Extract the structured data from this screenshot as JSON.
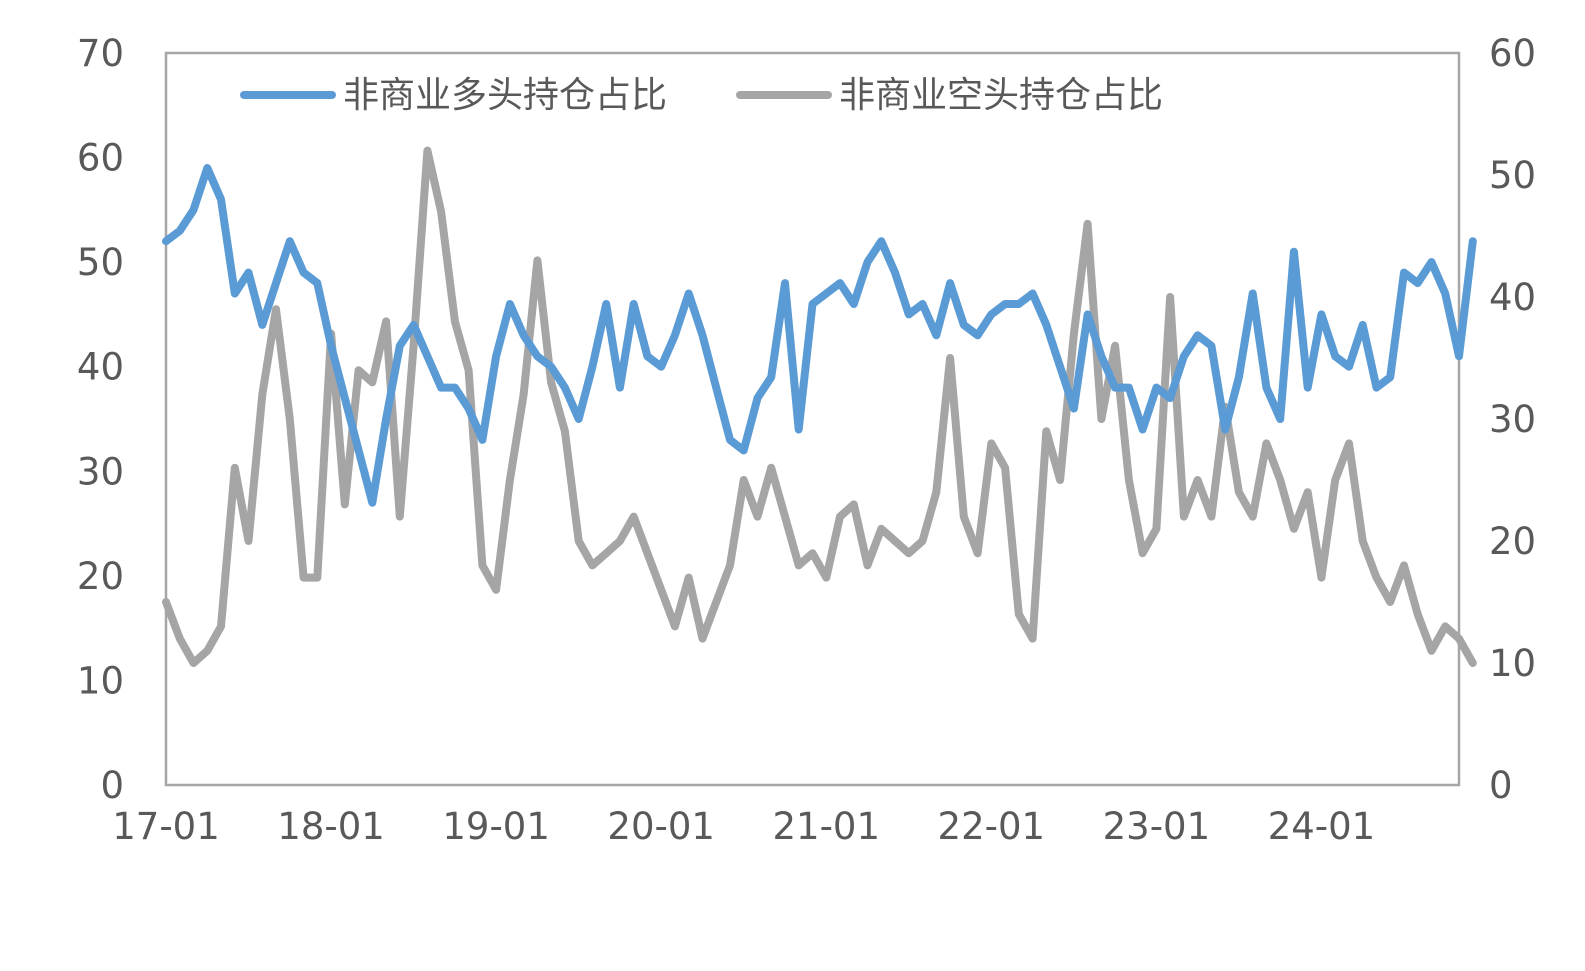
{
  "chart_data": {
    "type": "line",
    "title": "",
    "xlabel": "",
    "ylabel": "",
    "x_tick_labels": [
      "17-01",
      "18-01",
      "19-01",
      "20-01",
      "21-01",
      "22-01",
      "23-01",
      "24-01"
    ],
    "x_range": [
      "2017-01",
      "2024-11"
    ],
    "y_left": {
      "ylim": [
        0,
        70
      ],
      "ticks": [
        0,
        10,
        20,
        30,
        40,
        50,
        60,
        70
      ]
    },
    "y_right": {
      "ylim": [
        0,
        60
      ],
      "ticks": [
        0,
        10,
        20,
        30,
        40,
        50,
        60
      ]
    },
    "grid": false,
    "legend_position": "top",
    "series": [
      {
        "name": "非商业多头持仓占比",
        "axis": "left",
        "color": "#5b9bd5",
        "points": [
          [
            "2017-01",
            52
          ],
          [
            "2017-02",
            53
          ],
          [
            "2017-03",
            55
          ],
          [
            "2017-04",
            59
          ],
          [
            "2017-05",
            56
          ],
          [
            "2017-06",
            47
          ],
          [
            "2017-07",
            49
          ],
          [
            "2017-08",
            44
          ],
          [
            "2017-09",
            48
          ],
          [
            "2017-10",
            52
          ],
          [
            "2017-11",
            49
          ],
          [
            "2017-12",
            48
          ],
          [
            "2018-01",
            42
          ],
          [
            "2018-02",
            37
          ],
          [
            "2018-03",
            32
          ],
          [
            "2018-04",
            27
          ],
          [
            "2018-05",
            35
          ],
          [
            "2018-06",
            42
          ],
          [
            "2018-07",
            44
          ],
          [
            "2018-08",
            41
          ],
          [
            "2018-09",
            38
          ],
          [
            "2018-10",
            38
          ],
          [
            "2018-11",
            36
          ],
          [
            "2018-12",
            33
          ],
          [
            "2019-01",
            41
          ],
          [
            "2019-02",
            46
          ],
          [
            "2019-03",
            43
          ],
          [
            "2019-04",
            41
          ],
          [
            "2019-05",
            40
          ],
          [
            "2019-06",
            38
          ],
          [
            "2019-07",
            35
          ],
          [
            "2019-08",
            40
          ],
          [
            "2019-09",
            46
          ],
          [
            "2019-10",
            38
          ],
          [
            "2019-11",
            46
          ],
          [
            "2019-12",
            41
          ],
          [
            "2020-01",
            40
          ],
          [
            "2020-02",
            43
          ],
          [
            "2020-03",
            47
          ],
          [
            "2020-04",
            43
          ],
          [
            "2020-05",
            38
          ],
          [
            "2020-06",
            33
          ],
          [
            "2020-07",
            32
          ],
          [
            "2020-08",
            37
          ],
          [
            "2020-09",
            39
          ],
          [
            "2020-10",
            48
          ],
          [
            "2020-11",
            34
          ],
          [
            "2020-12",
            46
          ],
          [
            "2021-01",
            47
          ],
          [
            "2021-02",
            48
          ],
          [
            "2021-03",
            46
          ],
          [
            "2021-04",
            50
          ],
          [
            "2021-05",
            52
          ],
          [
            "2021-06",
            49
          ],
          [
            "2021-07",
            45
          ],
          [
            "2021-08",
            46
          ],
          [
            "2021-09",
            43
          ],
          [
            "2021-10",
            48
          ],
          [
            "2021-11",
            44
          ],
          [
            "2021-12",
            43
          ],
          [
            "2022-01",
            45
          ],
          [
            "2022-02",
            46
          ],
          [
            "2022-03",
            46
          ],
          [
            "2022-04",
            47
          ],
          [
            "2022-05",
            44
          ],
          [
            "2022-06",
            40
          ],
          [
            "2022-07",
            36
          ],
          [
            "2022-08",
            45
          ],
          [
            "2022-09",
            41
          ],
          [
            "2022-10",
            38
          ],
          [
            "2022-11",
            38
          ],
          [
            "2022-12",
            34
          ],
          [
            "2023-01",
            38
          ],
          [
            "2023-02",
            37
          ],
          [
            "2023-03",
            41
          ],
          [
            "2023-04",
            43
          ],
          [
            "2023-05",
            42
          ],
          [
            "2023-06",
            34
          ],
          [
            "2023-07",
            39
          ],
          [
            "2023-08",
            47
          ],
          [
            "2023-09",
            38
          ],
          [
            "2023-10",
            35
          ],
          [
            "2023-11",
            51
          ],
          [
            "2023-12",
            38
          ],
          [
            "2024-01",
            45
          ],
          [
            "2024-02",
            41
          ],
          [
            "2024-03",
            40
          ],
          [
            "2024-04",
            44
          ],
          [
            "2024-05",
            38
          ],
          [
            "2024-06",
            39
          ],
          [
            "2024-07",
            49
          ],
          [
            "2024-08",
            48
          ],
          [
            "2024-09",
            50
          ],
          [
            "2024-10",
            47
          ],
          [
            "2024-11",
            41
          ],
          [
            "2024-12",
            52
          ]
        ]
      },
      {
        "name": "非商业空头持仓占比",
        "axis": "right",
        "color": "#a5a5a5",
        "points": [
          [
            "2017-01",
            15
          ],
          [
            "2017-02",
            12
          ],
          [
            "2017-03",
            10
          ],
          [
            "2017-04",
            11
          ],
          [
            "2017-05",
            13
          ],
          [
            "2017-06",
            26
          ],
          [
            "2017-07",
            20
          ],
          [
            "2017-08",
            32
          ],
          [
            "2017-09",
            39
          ],
          [
            "2017-10",
            30
          ],
          [
            "2017-11",
            17
          ],
          [
            "2017-12",
            17
          ],
          [
            "2018-01",
            37
          ],
          [
            "2018-02",
            23
          ],
          [
            "2018-03",
            34
          ],
          [
            "2018-04",
            33
          ],
          [
            "2018-05",
            38
          ],
          [
            "2018-06",
            22
          ],
          [
            "2018-07",
            36
          ],
          [
            "2018-08",
            52
          ],
          [
            "2018-09",
            47
          ],
          [
            "2018-10",
            38
          ],
          [
            "2018-11",
            34
          ],
          [
            "2018-12",
            18
          ],
          [
            "2019-01",
            16
          ],
          [
            "2019-02",
            25
          ],
          [
            "2019-03",
            32
          ],
          [
            "2019-04",
            43
          ],
          [
            "2019-05",
            33
          ],
          [
            "2019-06",
            29
          ],
          [
            "2019-07",
            20
          ],
          [
            "2019-08",
            18
          ],
          [
            "2019-09",
            19
          ],
          [
            "2019-10",
            20
          ],
          [
            "2019-11",
            22
          ],
          [
            "2019-12",
            19
          ],
          [
            "2020-01",
            16
          ],
          [
            "2020-02",
            13
          ],
          [
            "2020-03",
            17
          ],
          [
            "2020-04",
            12
          ],
          [
            "2020-05",
            15
          ],
          [
            "2020-06",
            18
          ],
          [
            "2020-07",
            25
          ],
          [
            "2020-08",
            22
          ],
          [
            "2020-09",
            26
          ],
          [
            "2020-10",
            22
          ],
          [
            "2020-11",
            18
          ],
          [
            "2020-12",
            19
          ],
          [
            "2021-01",
            17
          ],
          [
            "2021-02",
            22
          ],
          [
            "2021-03",
            23
          ],
          [
            "2021-04",
            18
          ],
          [
            "2021-05",
            21
          ],
          [
            "2021-06",
            20
          ],
          [
            "2021-07",
            19
          ],
          [
            "2021-08",
            20
          ],
          [
            "2021-09",
            24
          ],
          [
            "2021-10",
            35
          ],
          [
            "2021-11",
            22
          ],
          [
            "2021-12",
            19
          ],
          [
            "2022-01",
            28
          ],
          [
            "2022-02",
            26
          ],
          [
            "2022-03",
            14
          ],
          [
            "2022-04",
            12
          ],
          [
            "2022-05",
            29
          ],
          [
            "2022-06",
            25
          ],
          [
            "2022-07",
            37
          ],
          [
            "2022-08",
            46
          ],
          [
            "2022-09",
            30
          ],
          [
            "2022-10",
            36
          ],
          [
            "2022-11",
            25
          ],
          [
            "2022-12",
            19
          ],
          [
            "2023-01",
            21
          ],
          [
            "2023-02",
            40
          ],
          [
            "2023-03",
            22
          ],
          [
            "2023-04",
            25
          ],
          [
            "2023-05",
            22
          ],
          [
            "2023-06",
            31
          ],
          [
            "2023-07",
            24
          ],
          [
            "2023-08",
            22
          ],
          [
            "2023-09",
            28
          ],
          [
            "2023-10",
            25
          ],
          [
            "2023-11",
            21
          ],
          [
            "2023-12",
            24
          ],
          [
            "2024-01",
            17
          ],
          [
            "2024-02",
            25
          ],
          [
            "2024-03",
            28
          ],
          [
            "2024-04",
            20
          ],
          [
            "2024-05",
            17
          ],
          [
            "2024-06",
            15
          ],
          [
            "2024-07",
            18
          ],
          [
            "2024-08",
            14
          ],
          [
            "2024-09",
            11
          ],
          [
            "2024-10",
            13
          ],
          [
            "2024-11",
            12
          ],
          [
            "2024-12",
            10
          ]
        ]
      }
    ]
  }
}
